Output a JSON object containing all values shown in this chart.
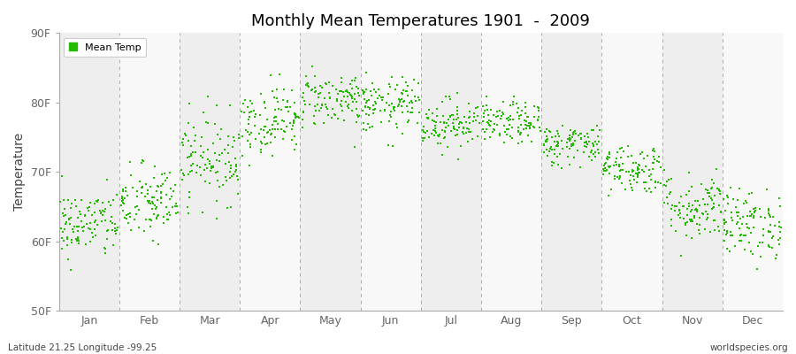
{
  "title": "Monthly Mean Temperatures 1901  -  2009",
  "ylabel": "Temperature",
  "ylim": [
    50,
    90
  ],
  "yticks": [
    50,
    60,
    70,
    80,
    90
  ],
  "ytick_labels": [
    "50F",
    "60F",
    "70F",
    "80F",
    "90F"
  ],
  "months": [
    "Jan",
    "Feb",
    "Mar",
    "Apr",
    "May",
    "Jun",
    "Jul",
    "Aug",
    "Sep",
    "Oct",
    "Nov",
    "Dec"
  ],
  "month_means": [
    62.5,
    65.5,
    72.0,
    77.5,
    80.5,
    79.5,
    77.0,
    77.0,
    74.0,
    70.5,
    65.0,
    62.5
  ],
  "month_stds": [
    2.5,
    2.8,
    3.2,
    2.5,
    2.0,
    2.0,
    1.8,
    1.5,
    1.5,
    1.8,
    2.5,
    2.5
  ],
  "num_years": 109,
  "dot_color": "#22BB00",
  "dot_size": 4,
  "bg_color_odd": "#EEEEEE",
  "bg_color_even": "#F8F8F8",
  "grid_color": "#999999",
  "footer_left": "Latitude 21.25 Longitude -99.25",
  "footer_right": "worldspecies.org",
  "legend_label": "Mean Temp",
  "seed": 42
}
